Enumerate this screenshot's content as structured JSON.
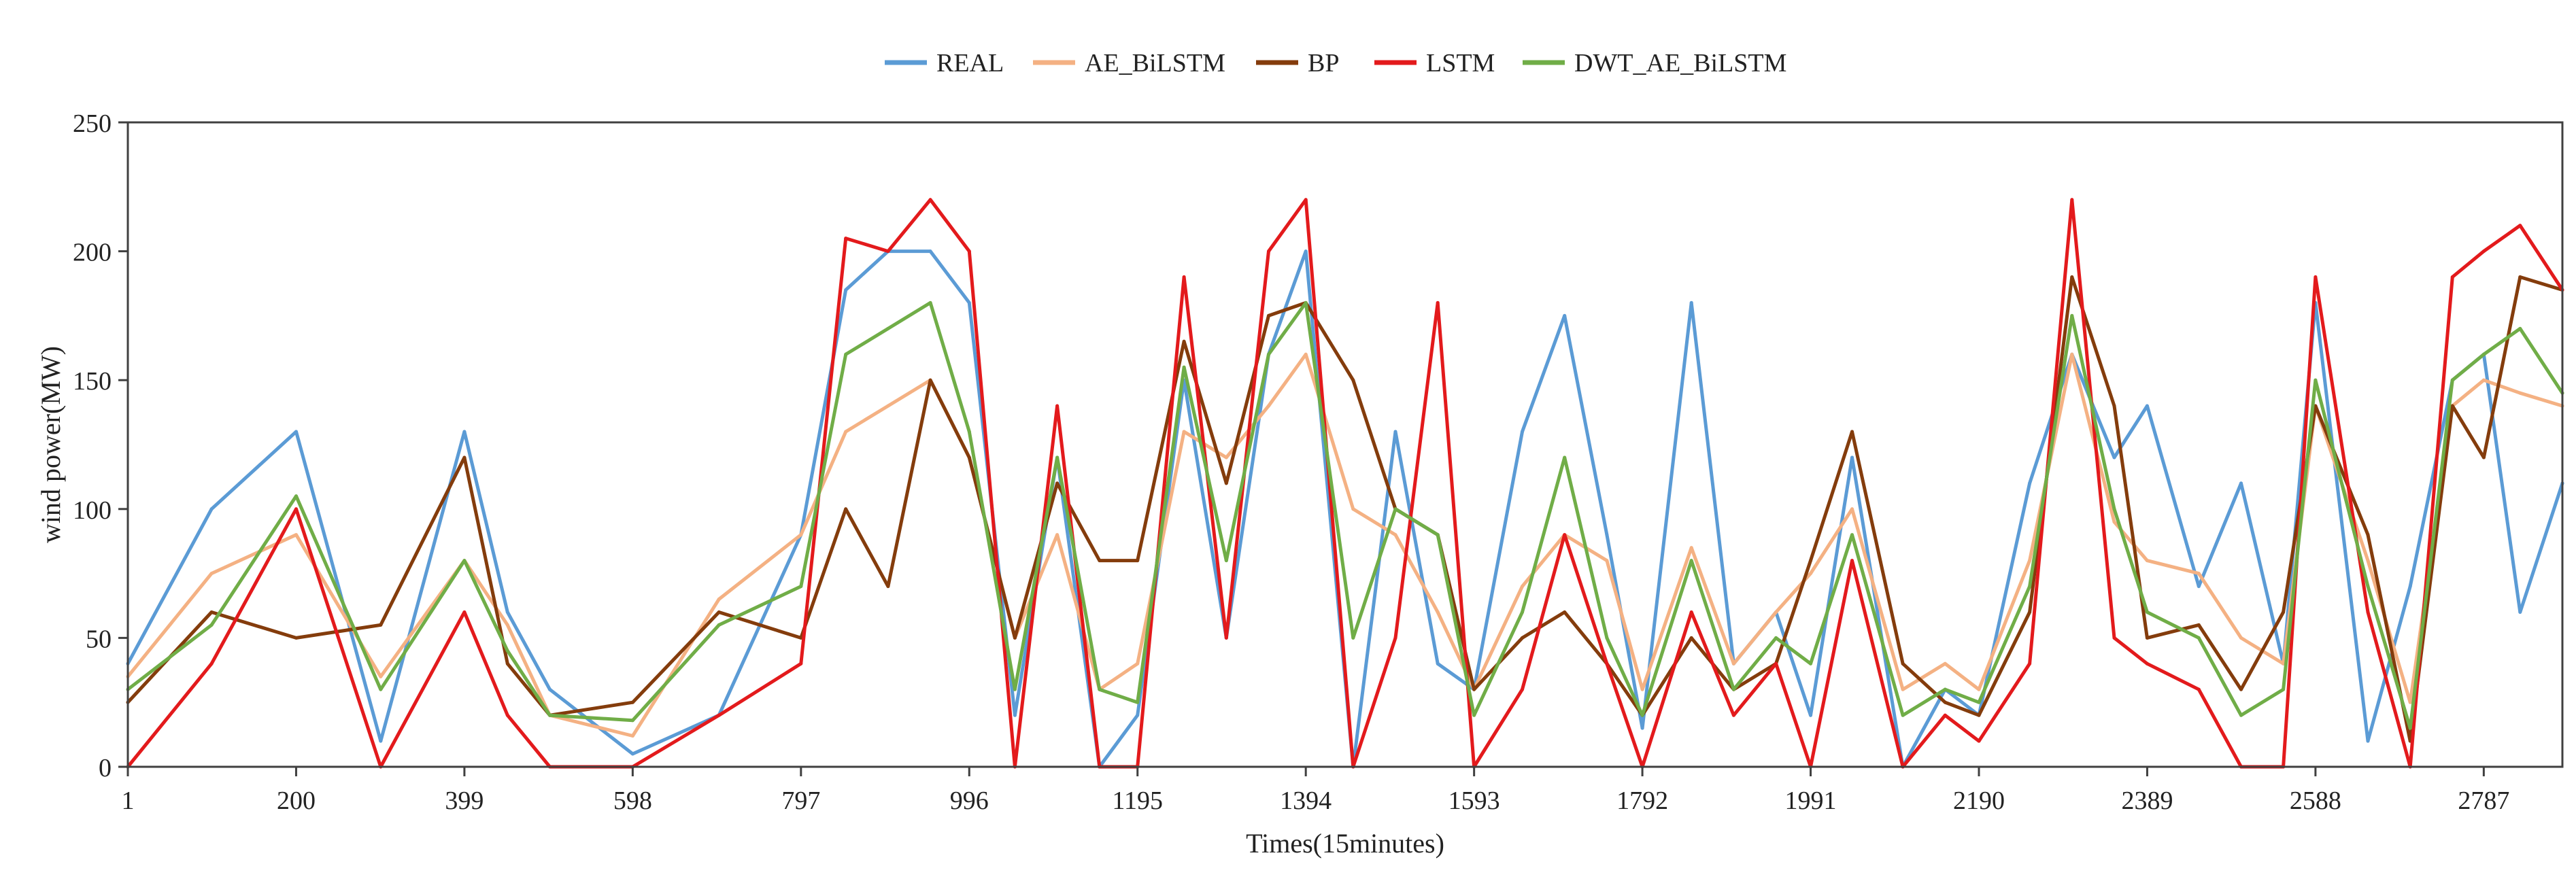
{
  "chart_data": {
    "type": "line",
    "title": "",
    "xlabel": "Times(15minutes)",
    "ylabel": "wind power(MW)",
    "ylim": [
      0,
      250
    ],
    "yticks": [
      0,
      50,
      100,
      150,
      200,
      250
    ],
    "xticks": [
      1,
      200,
      399,
      598,
      797,
      996,
      1195,
      1394,
      1593,
      1792,
      1991,
      2190,
      2389,
      2588,
      2787
    ],
    "xlim": [
      1,
      2880
    ],
    "grid": false,
    "legend": "top-center",
    "x": [
      1,
      100,
      200,
      300,
      399,
      450,
      500,
      598,
      700,
      797,
      850,
      900,
      950,
      996,
      1050,
      1100,
      1150,
      1195,
      1250,
      1300,
      1350,
      1394,
      1450,
      1500,
      1550,
      1593,
      1650,
      1700,
      1750,
      1792,
      1850,
      1900,
      1950,
      1991,
      2040,
      2100,
      2150,
      2190,
      2250,
      2300,
      2350,
      2389,
      2450,
      2500,
      2550,
      2588,
      2650,
      2700,
      2750,
      2787,
      2830,
      2880
    ],
    "series": [
      {
        "name": "REAL",
        "color": "#5b9bd5",
        "values": [
          40,
          100,
          130,
          10,
          130,
          60,
          30,
          5,
          20,
          90,
          185,
          200,
          200,
          180,
          20,
          120,
          0,
          20,
          150,
          50,
          160,
          200,
          0,
          130,
          40,
          30,
          130,
          175,
          90,
          15,
          180,
          40,
          60,
          20,
          120,
          0,
          30,
          20,
          110,
          160,
          120,
          140,
          70,
          110,
          40,
          180,
          10,
          70,
          150,
          160,
          60,
          110
        ]
      },
      {
        "name": "AE_BiLSTM",
        "color": "#f4b183",
        "values": [
          35,
          75,
          90,
          35,
          80,
          55,
          20,
          12,
          65,
          90,
          130,
          140,
          150,
          120,
          50,
          90,
          30,
          40,
          130,
          120,
          140,
          160,
          100,
          90,
          60,
          30,
          70,
          90,
          80,
          30,
          85,
          40,
          60,
          75,
          100,
          30,
          40,
          30,
          80,
          160,
          95,
          80,
          75,
          50,
          40,
          140,
          80,
          25,
          140,
          150,
          145,
          140
        ]
      },
      {
        "name": "BP",
        "color": "#843c0c",
        "values": [
          25,
          60,
          50,
          55,
          120,
          40,
          20,
          25,
          60,
          50,
          100,
          70,
          150,
          120,
          50,
          110,
          80,
          80,
          165,
          110,
          175,
          180,
          150,
          100,
          90,
          30,
          50,
          60,
          40,
          20,
          50,
          30,
          40,
          80,
          130,
          40,
          25,
          20,
          60,
          190,
          140,
          50,
          55,
          30,
          60,
          140,
          90,
          10,
          140,
          120,
          190,
          185
        ]
      },
      {
        "name": "LSTM",
        "color": "#e31a1c",
        "values": [
          0,
          40,
          100,
          0,
          60,
          20,
          0,
          0,
          20,
          40,
          205,
          200,
          220,
          200,
          0,
          140,
          0,
          0,
          190,
          50,
          200,
          220,
          0,
          50,
          180,
          0,
          30,
          90,
          40,
          0,
          60,
          20,
          40,
          0,
          80,
          0,
          20,
          10,
          40,
          220,
          50,
          40,
          30,
          0,
          0,
          190,
          60,
          0,
          190,
          200,
          210,
          185
        ]
      },
      {
        "name": "DWT_AE_BiLSTM",
        "color": "#70ad47",
        "values": [
          30,
          55,
          105,
          30,
          80,
          45,
          20,
          18,
          55,
          70,
          160,
          170,
          180,
          130,
          30,
          120,
          30,
          25,
          155,
          80,
          160,
          180,
          50,
          100,
          90,
          20,
          60,
          120,
          50,
          20,
          80,
          30,
          50,
          40,
          90,
          20,
          30,
          25,
          70,
          175,
          100,
          60,
          50,
          20,
          30,
          150,
          70,
          15,
          150,
          160,
          170,
          145
        ]
      }
    ]
  }
}
